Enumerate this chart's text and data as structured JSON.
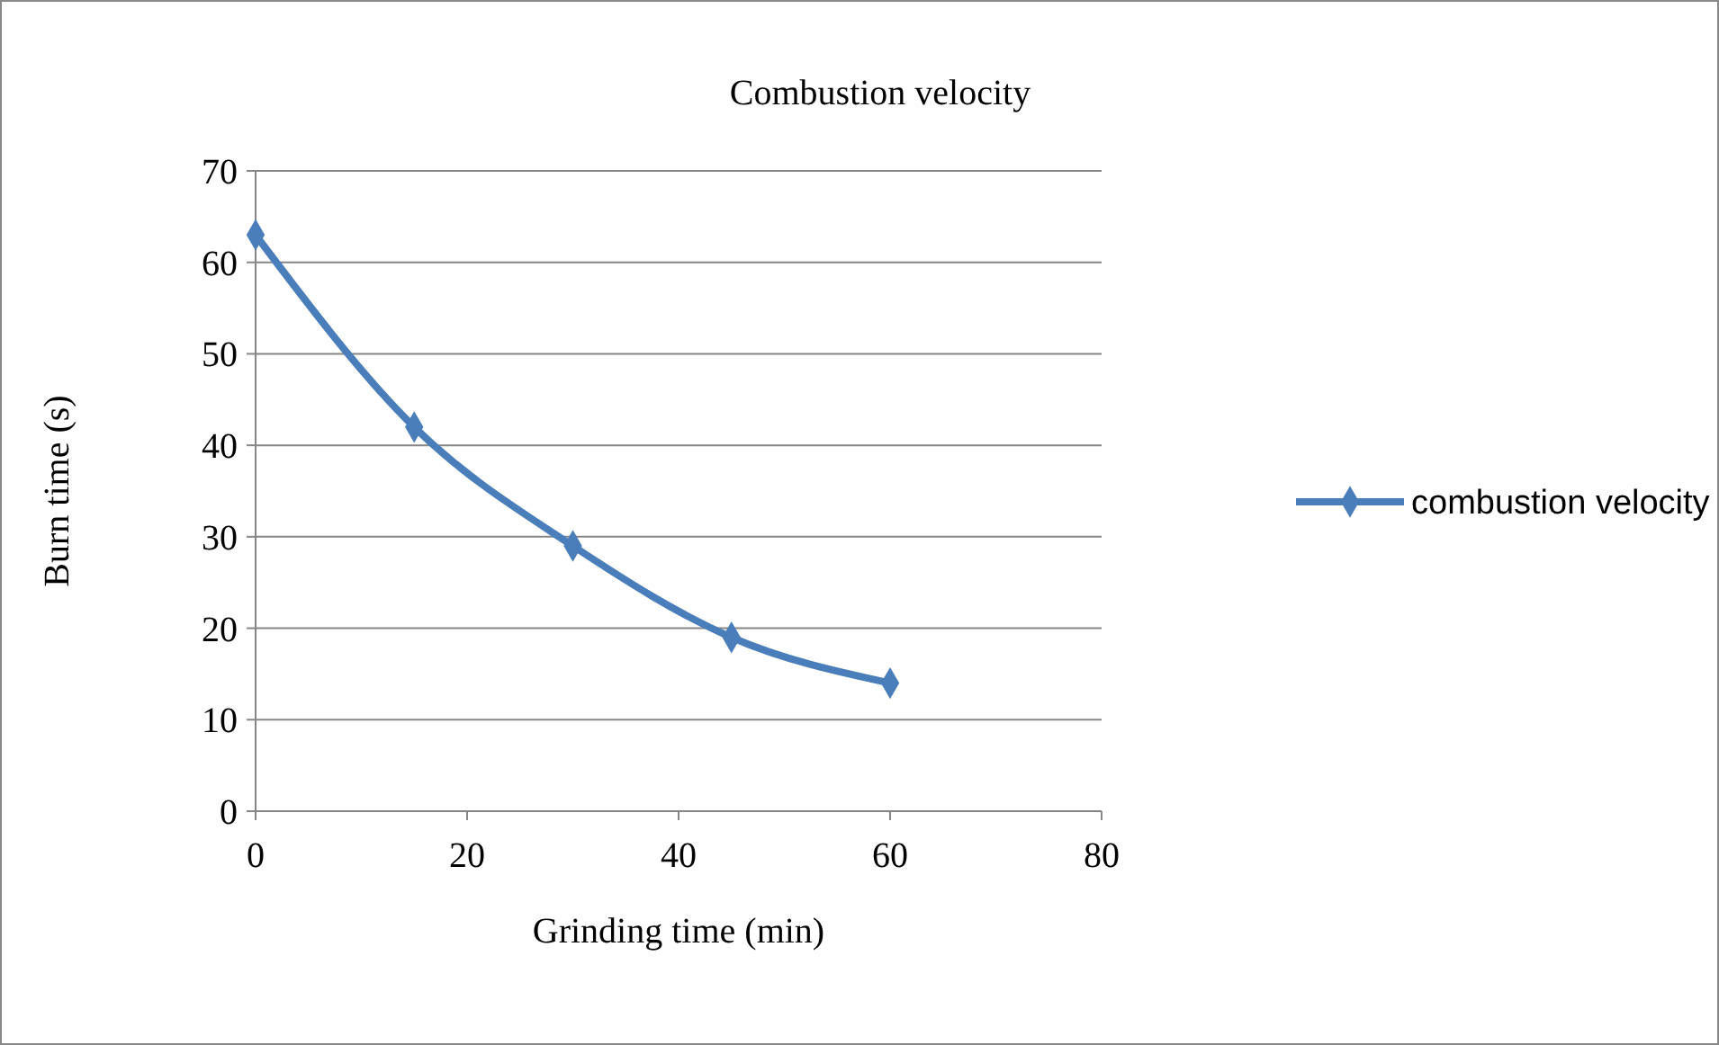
{
  "chart_data": {
    "type": "line",
    "title": "Combustion velocity",
    "xlabel": "Grinding time (min)",
    "ylabel": "Burn time (s)",
    "x": [
      0,
      15,
      30,
      45,
      60
    ],
    "series": [
      {
        "name": "combustion velocity",
        "color": "#4a7ebb",
        "values": [
          63,
          42,
          29,
          19,
          14
        ]
      }
    ],
    "xlim": [
      0,
      80
    ],
    "xticks": [
      0,
      20,
      40,
      60,
      80
    ],
    "ylim": [
      0,
      70
    ],
    "yticks": [
      0,
      10,
      20,
      30,
      40,
      50,
      60,
      70
    ],
    "grid": "y",
    "legend": "right",
    "marker": "diamond",
    "line_style": "solid"
  }
}
